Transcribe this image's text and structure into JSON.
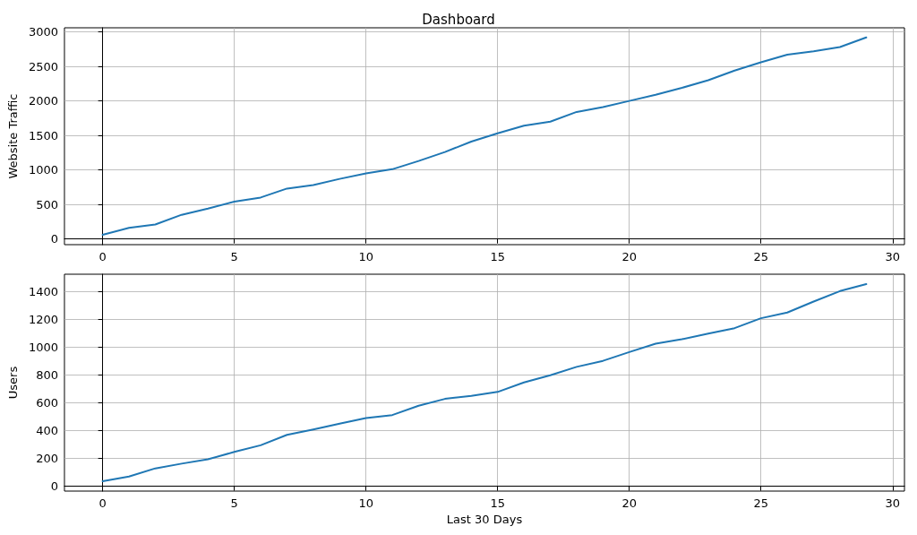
{
  "chart_data": [
    {
      "type": "line",
      "title": "Dashboard",
      "ylabel": "Website Traffic",
      "x": [
        0,
        1,
        2,
        3,
        4,
        5,
        6,
        7,
        8,
        9,
        10,
        11,
        12,
        13,
        14,
        15,
        16,
        17,
        18,
        19,
        20,
        21,
        22,
        23,
        24,
        25,
        26,
        27,
        28,
        29
      ],
      "series": [
        {
          "color": "#1f77b4",
          "values": [
            60,
            160,
            210,
            350,
            440,
            540,
            600,
            730,
            780,
            870,
            950,
            1010,
            1130,
            1260,
            1410,
            1530,
            1640,
            1700,
            1840,
            1910,
            2000,
            2090,
            2190,
            2300,
            2440,
            2560,
            2670,
            2720,
            2780,
            2920
          ]
        }
      ],
      "xlim": [
        -1.45,
        30.45
      ],
      "xticks": [
        0,
        5,
        10,
        15,
        20,
        25,
        30
      ],
      "ylim": [
        -83,
        3060
      ],
      "yticks": [
        0,
        500,
        1000,
        1500,
        2000,
        2500,
        3000
      ],
      "grid": true
    },
    {
      "type": "line",
      "xlabel": "Last 30 Days",
      "ylabel": "Users",
      "x": [
        0,
        1,
        2,
        3,
        4,
        5,
        6,
        7,
        8,
        9,
        10,
        11,
        12,
        13,
        14,
        15,
        16,
        17,
        18,
        19,
        20,
        21,
        22,
        23,
        24,
        25,
        26,
        27,
        28,
        29
      ],
      "series": [
        {
          "color": "#1f77b4",
          "values": [
            37,
            71,
            129,
            163,
            194,
            247,
            295,
            370,
            409,
            450,
            490,
            512,
            579,
            628,
            650,
            678,
            746,
            798,
            858,
            901,
            964,
            1024,
            1056,
            1097,
            1136,
            1207,
            1248,
            1327,
            1402,
            1452
          ]
        }
      ],
      "xlim": [
        -1.45,
        30.45
      ],
      "xticks": [
        0,
        5,
        10,
        15,
        20,
        25,
        30
      ],
      "ylim": [
        -34,
        1523
      ],
      "yticks": [
        0,
        200,
        400,
        600,
        800,
        1000,
        1200,
        1400
      ],
      "grid": true
    }
  ]
}
